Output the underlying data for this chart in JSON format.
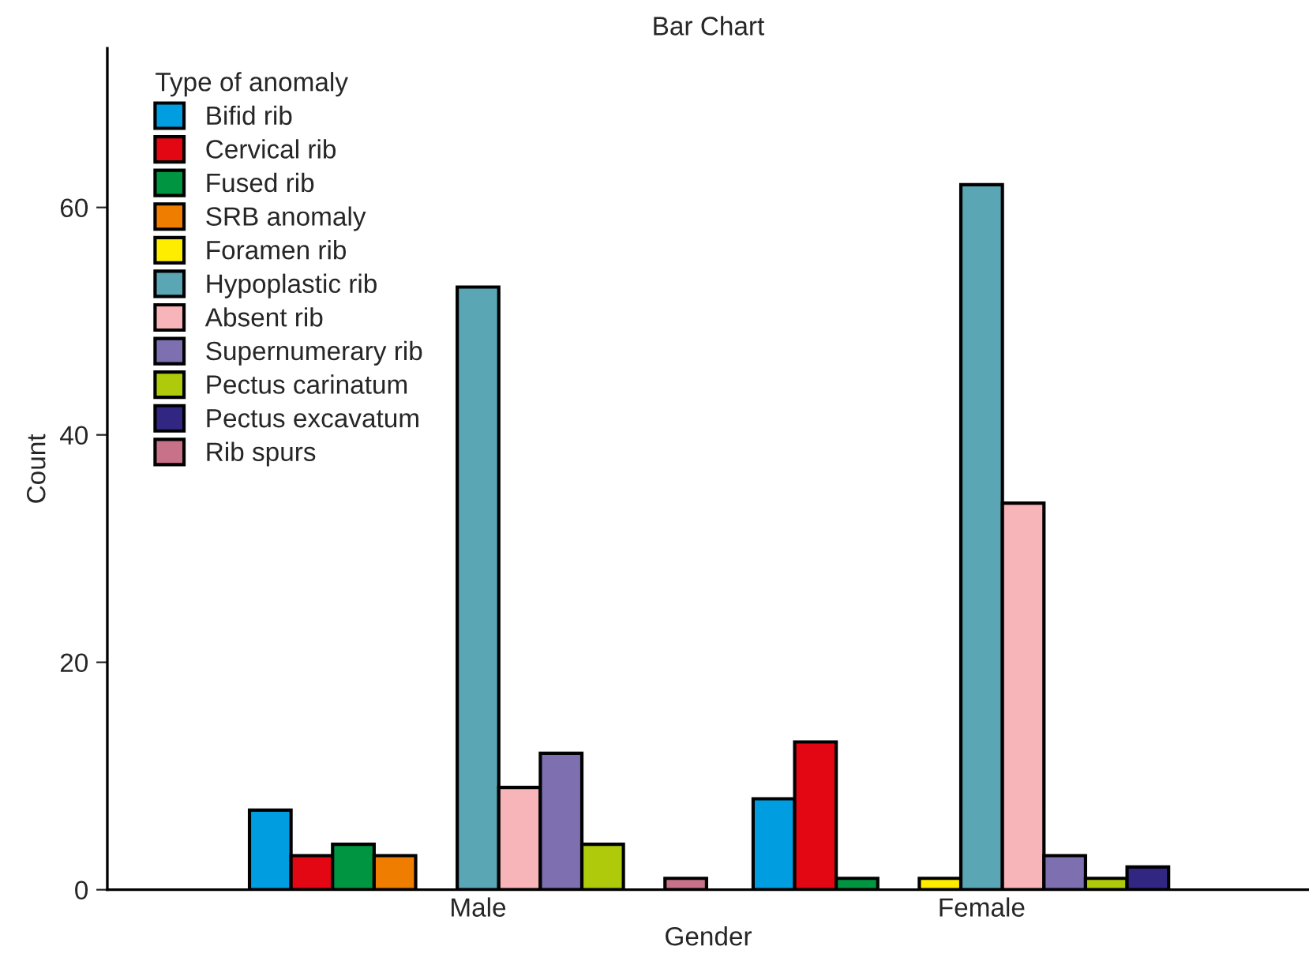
{
  "chart_data": {
    "type": "bar",
    "title": "Bar Chart",
    "xlabel": "Gender",
    "ylabel": "Count",
    "legend_title": "Type of anomaly",
    "categories": [
      "Male",
      "Female"
    ],
    "series": [
      {
        "name": "Bifid rib",
        "color": "#009ee0",
        "values": [
          7,
          8
        ]
      },
      {
        "name": "Cervical rib",
        "color": "#e30613",
        "values": [
          3,
          13
        ]
      },
      {
        "name": "Fused rib",
        "color": "#009540",
        "values": [
          4,
          1
        ]
      },
      {
        "name": "SRB anomaly",
        "color": "#ef7d00",
        "values": [
          3,
          null
        ]
      },
      {
        "name": "Foramen rib",
        "color": "#ffed00",
        "values": [
          null,
          1
        ]
      },
      {
        "name": "Hypoplastic rib",
        "color": "#5aa6b4",
        "values": [
          53,
          62
        ]
      },
      {
        "name": "Absent rib",
        "color": "#f7b4b9",
        "values": [
          9,
          34
        ]
      },
      {
        "name": "Supernumerary rib",
        "color": "#7d6fb0",
        "values": [
          12,
          3
        ]
      },
      {
        "name": "Pectus carinatum",
        "color": "#afca0b",
        "values": [
          4,
          1
        ]
      },
      {
        "name": "Pectus excavatum",
        "color": "#312783",
        "values": [
          null,
          2
        ]
      },
      {
        "name": "Rib spurs",
        "color": "#c8728a",
        "values": [
          1,
          null
        ]
      }
    ],
    "ylim": [
      0,
      74
    ],
    "yticks": [
      0,
      20,
      40,
      60
    ],
    "grid": false,
    "legend": "top left"
  }
}
